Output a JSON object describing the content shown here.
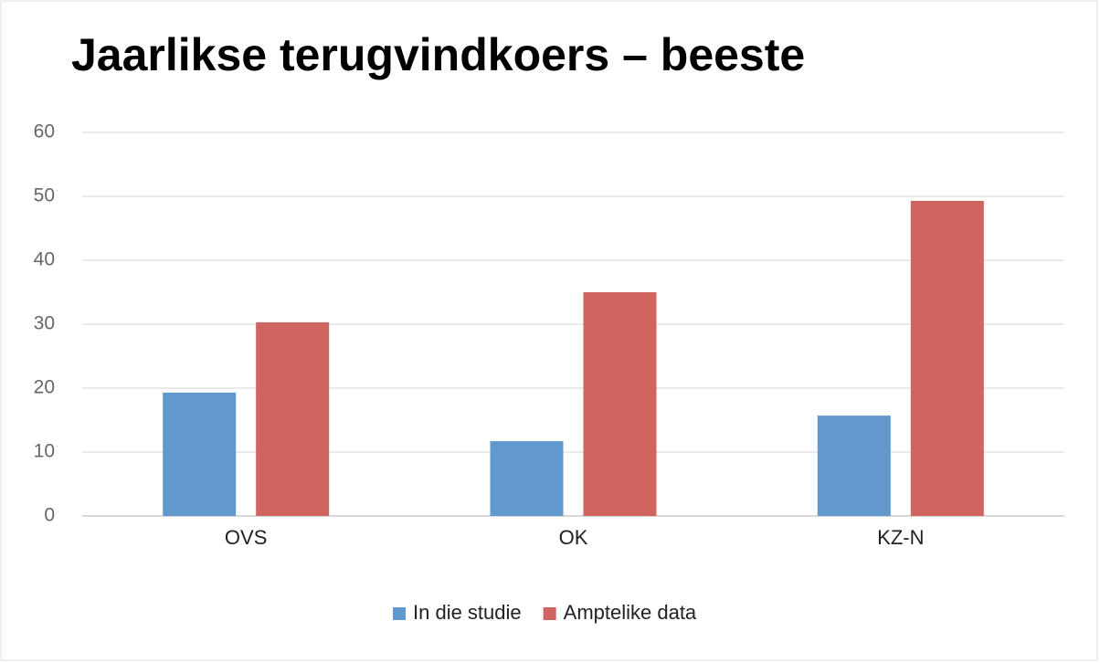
{
  "chart_data": {
    "type": "bar",
    "title": "Jaarlikse terugvindkoers – beeste",
    "categories": [
      "OVS",
      "OK",
      "KZ-N"
    ],
    "series": [
      {
        "name": "In die studie",
        "color": "#6199cf",
        "values": [
          19.3,
          11.7,
          15.7
        ]
      },
      {
        "name": "Amptelike data",
        "color": "#d0655f",
        "values": [
          30.3,
          35,
          49.3
        ]
      }
    ],
    "ylim": [
      0,
      60
    ],
    "yticks": [
      0,
      10,
      20,
      30,
      40,
      50,
      60
    ],
    "grid": true,
    "legend": "bottom"
  }
}
